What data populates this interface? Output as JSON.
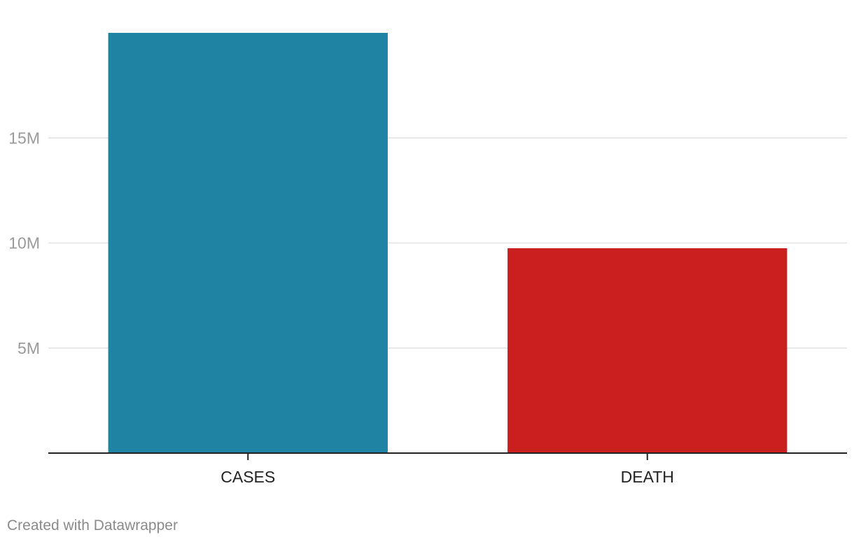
{
  "chart_data": {
    "type": "bar",
    "title": "",
    "xlabel": "",
    "ylabel": "",
    "categories": [
      "CASES",
      "DEATH"
    ],
    "values": [
      20000000,
      9750000
    ],
    "colors": [
      "#1f83a3",
      "#c91f1f"
    ],
    "ylim": [
      0,
      20000000
    ],
    "yticks": [
      5000000,
      10000000,
      15000000
    ],
    "ytick_labels": [
      "5M",
      "10M",
      "15M"
    ],
    "grid": true,
    "legend": "none"
  },
  "footer": {
    "credit": "Created with Datawrapper"
  }
}
